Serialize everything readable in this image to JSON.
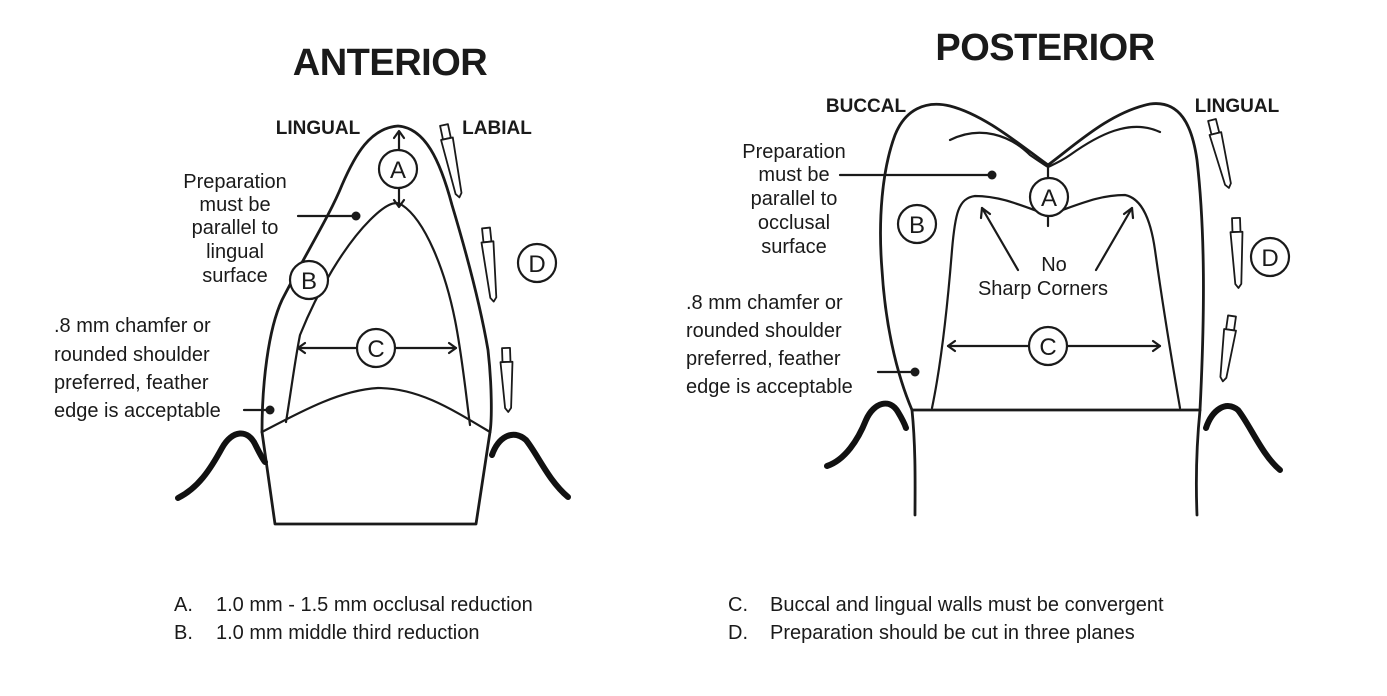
{
  "anterior": {
    "title": "ANTERIOR",
    "lingual_label": "LINGUAL",
    "labial_label": "LABIAL",
    "note_parallel": [
      "Preparation",
      "must be",
      "parallel to",
      "lingual",
      "surface"
    ],
    "note_margin": [
      ".8 mm chamfer or",
      "rounded shoulder",
      "preferred, feather",
      "edge is acceptable"
    ],
    "badges": {
      "a": "A",
      "b": "B",
      "c": "C",
      "d": "D"
    }
  },
  "posterior": {
    "title": "POSTERIOR",
    "buccal_label": "BUCCAL",
    "lingual_label": "LINGUAL",
    "note_parallel": [
      "Preparation",
      "must be",
      "parallel to",
      "occlusal",
      "surface"
    ],
    "note_corners": [
      "No",
      "Sharp Corners"
    ],
    "note_margin": [
      ".8 mm chamfer or",
      "rounded shoulder",
      "preferred, feather",
      "edge is acceptable"
    ],
    "badges": {
      "a": "A",
      "b": "B",
      "c": "C",
      "d": "D"
    }
  },
  "legend": {
    "left": [
      {
        "letter": "A.",
        "text": "1.0 mm - 1.5 mm occlusal reduction"
      },
      {
        "letter": "B.",
        "text": "1.0 mm middle third reduction"
      }
    ],
    "right": [
      {
        "letter": "C.",
        "text": "Buccal and lingual walls must be convergent"
      },
      {
        "letter": "D.",
        "text": "Preparation should be cut in three planes"
      }
    ]
  },
  "icons": [
    "bur-icon",
    "leader-dot-icon",
    "dimension-arrow-icon",
    "circled-letter-icon"
  ]
}
